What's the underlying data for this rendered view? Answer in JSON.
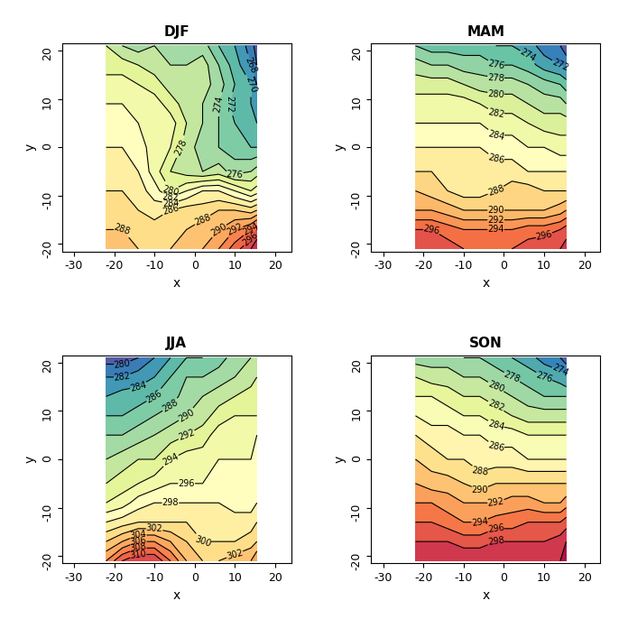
{
  "chart_data": [
    {
      "type": "contour",
      "title": "DJF",
      "x_label": "x",
      "y_label": "y",
      "xlim": [
        -33,
        24
      ],
      "ylim": [
        -21.5,
        21.5
      ],
      "xticks": [
        -30,
        -20,
        -10,
        0,
        10,
        20
      ],
      "yticks": [
        -20,
        -10,
        0,
        10,
        20
      ],
      "x": [
        -22,
        -18,
        -14,
        -10,
        -6,
        -2,
        2,
        6,
        10,
        14,
        15.5
      ],
      "y": [
        -21,
        -17,
        -13,
        -9,
        -5,
        0,
        5,
        9,
        13,
        17,
        21
      ],
      "z": [
        [
          290,
          289,
          288,
          288,
          288,
          289,
          290,
          292,
          295,
          298,
          300
        ],
        [
          288,
          288,
          287,
          287,
          288,
          288,
          289,
          290,
          292,
          294,
          296
        ],
        [
          287,
          287,
          286,
          285,
          286,
          287,
          287,
          288,
          288,
          287,
          288
        ],
        [
          286,
          286,
          285,
          283,
          280,
          282,
          284,
          284,
          282,
          280,
          281
        ],
        [
          285,
          285,
          284,
          281,
          278,
          277,
          276,
          277,
          275,
          276,
          277
        ],
        [
          284,
          284,
          283,
          281,
          280,
          277,
          275,
          274,
          273,
          272,
          272
        ],
        [
          283,
          283,
          282,
          281,
          281,
          278,
          276,
          274,
          272,
          271,
          270
        ],
        [
          282,
          282,
          281,
          281,
          279,
          277,
          276,
          274,
          271,
          270,
          269
        ],
        [
          281,
          281,
          280,
          279,
          277,
          277,
          277,
          275,
          272,
          270,
          268
        ],
        [
          279,
          279,
          278,
          277,
          276,
          276,
          277,
          274,
          271,
          268,
          266
        ],
        [
          278,
          276,
          275,
          276,
          276,
          276,
          275,
          272,
          270,
          267,
          265
        ]
      ],
      "levels": [
        264,
        266,
        268,
        270,
        272,
        274,
        276,
        278,
        280,
        282,
        284,
        286,
        288,
        290,
        292,
        294,
        296,
        298,
        300,
        302,
        304,
        306,
        308,
        310,
        312,
        314,
        316
      ],
      "zlim": [
        264,
        302
      ]
    },
    {
      "type": "contour",
      "title": "MAM",
      "x_label": "x",
      "y_label": "y",
      "xlim": [
        -33,
        24
      ],
      "ylim": [
        -21.5,
        21.5
      ],
      "xticks": [
        -30,
        -20,
        -10,
        0,
        10,
        20
      ],
      "yticks": [
        -20,
        -10,
        0,
        10,
        20
      ],
      "x": [
        -22,
        -18,
        -14,
        -10,
        -6,
        -2,
        2,
        6,
        10,
        14,
        15.5
      ],
      "y": [
        -21,
        -17,
        -13,
        -9,
        -5,
        0,
        5,
        9,
        13,
        17,
        21
      ],
      "z": [
        [
          298,
          298,
          297,
          296,
          296,
          296,
          296,
          297,
          298,
          298,
          299
        ],
        [
          296,
          296,
          295,
          294,
          294,
          294,
          294,
          295,
          295,
          296,
          297
        ],
        [
          292,
          292,
          291,
          290,
          290,
          290,
          290,
          290,
          290,
          291,
          292
        ],
        [
          290,
          289,
          288,
          287,
          287,
          288,
          289,
          289,
          288,
          288,
          288
        ],
        [
          288,
          288,
          287,
          287,
          287,
          287,
          287,
          286,
          286,
          286,
          286
        ],
        [
          286,
          286,
          286,
          286,
          286,
          285,
          285,
          284,
          284,
          283,
          283
        ],
        [
          284,
          284,
          284,
          284,
          284,
          283,
          283,
          282,
          281,
          281,
          281
        ],
        [
          283,
          283,
          283,
          283,
          282,
          281,
          281,
          280,
          279,
          279,
          278
        ],
        [
          281,
          281,
          281,
          280,
          279,
          279,
          279,
          278,
          277,
          276,
          275
        ],
        [
          279,
          278,
          278,
          277,
          277,
          276,
          276,
          275,
          273,
          272,
          271
        ],
        [
          276,
          275,
          275,
          275,
          275,
          274,
          274,
          273,
          271,
          270,
          269
        ]
      ],
      "levels": [
        264,
        266,
        268,
        270,
        272,
        274,
        276,
        278,
        280,
        282,
        284,
        286,
        288,
        290,
        292,
        294,
        296,
        298,
        300,
        302,
        304,
        306,
        308,
        310,
        312,
        314,
        316
      ],
      "zlim": [
        268,
        302
      ]
    },
    {
      "type": "contour",
      "title": "JJA",
      "x_label": "x",
      "y_label": "y",
      "xlim": [
        -33,
        24
      ],
      "ylim": [
        -21.5,
        21.5
      ],
      "xticks": [
        -30,
        -20,
        -10,
        0,
        10,
        20
      ],
      "yticks": [
        -20,
        -10,
        0,
        10,
        20
      ],
      "x": [
        -22,
        -18,
        -14,
        -10,
        -6,
        -2,
        2,
        6,
        10,
        14,
        15.5
      ],
      "y": [
        -21,
        -17,
        -13,
        -9,
        -5,
        0,
        5,
        9,
        13,
        17,
        21
      ],
      "z": [
        [
          306,
          310,
          312,
          312,
          308,
          304,
          302,
          302,
          303,
          304,
          306
        ],
        [
          302,
          304,
          306,
          306,
          304,
          302,
          300,
          300,
          300,
          301,
          302
        ],
        [
          298,
          299,
          300,
          300,
          300,
          300,
          299,
          299,
          299,
          299,
          300
        ],
        [
          294,
          295,
          297,
          298,
          298,
          298,
          298,
          298,
          297,
          297,
          298
        ],
        [
          292,
          293,
          294,
          295,
          296,
          296,
          296,
          297,
          297,
          297,
          297
        ],
        [
          290,
          291,
          292,
          292,
          294,
          295,
          295,
          296,
          296,
          296,
          297
        ],
        [
          288,
          288,
          289,
          290,
          291,
          292,
          293,
          295,
          296,
          296,
          296
        ],
        [
          286,
          286,
          287,
          288,
          289,
          290,
          291,
          293,
          294,
          294,
          294
        ],
        [
          284,
          285,
          285,
          286,
          287,
          289,
          290,
          291,
          292,
          293,
          293
        ],
        [
          282,
          282,
          283,
          284,
          286,
          288,
          288,
          289,
          290,
          291,
          292
        ],
        [
          279,
          279,
          280,
          282,
          284,
          286,
          286,
          287,
          289,
          290,
          291
        ]
      ],
      "levels": [
        264,
        266,
        268,
        270,
        272,
        274,
        276,
        278,
        280,
        282,
        284,
        286,
        288,
        290,
        292,
        294,
        296,
        298,
        300,
        302,
        304,
        306,
        308,
        310,
        312,
        314,
        316
      ],
      "zlim": [
        278,
        316
      ]
    },
    {
      "type": "contour",
      "title": "SON",
      "x_label": "x",
      "y_label": "y",
      "xlim": [
        -33,
        24
      ],
      "ylim": [
        -21.5,
        21.5
      ],
      "xticks": [
        -30,
        -20,
        -10,
        0,
        10,
        20
      ],
      "yticks": [
        -20,
        -10,
        0,
        10,
        20
      ],
      "x": [
        -22,
        -18,
        -14,
        -10,
        -6,
        -2,
        2,
        6,
        10,
        14,
        15.5
      ],
      "y": [
        -21,
        -17,
        -13,
        -9,
        -5,
        0,
        5,
        9,
        13,
        17,
        21
      ],
      "z": [
        [
          300,
          300,
          300,
          300,
          300,
          300,
          300,
          300,
          300,
          300,
          301
        ],
        [
          298,
          298,
          298,
          297,
          297,
          298,
          298,
          298,
          298,
          299,
          300
        ],
        [
          296,
          296,
          295,
          294,
          294,
          295,
          295,
          296,
          296,
          296,
          297
        ],
        [
          294,
          294,
          293,
          292,
          292,
          292,
          293,
          293,
          292,
          292,
          293
        ],
        [
          292,
          291,
          291,
          290,
          289,
          290,
          290,
          290,
          290,
          290,
          290
        ],
        [
          290,
          289,
          288,
          288,
          287,
          287,
          287,
          286,
          286,
          286,
          286
        ],
        [
          288,
          287,
          287,
          286,
          286,
          285,
          285,
          284,
          284,
          284,
          284
        ],
        [
          286,
          285,
          285,
          284,
          284,
          283,
          282,
          281,
          281,
          281,
          281
        ],
        [
          284,
          284,
          283,
          282,
          282,
          281,
          280,
          279,
          278,
          278,
          278
        ],
        [
          282,
          281,
          281,
          280,
          280,
          279,
          278,
          277,
          276,
          275,
          274
        ],
        [
          279,
          279,
          279,
          278,
          278,
          277,
          276,
          275,
          273,
          272,
          271
        ]
      ],
      "levels": [
        264,
        266,
        268,
        270,
        272,
        274,
        276,
        278,
        280,
        282,
        284,
        286,
        288,
        290,
        292,
        294,
        296,
        298,
        300,
        302,
        304,
        306,
        308,
        310,
        312,
        314,
        316
      ],
      "zlim": [
        270,
        302
      ]
    }
  ]
}
